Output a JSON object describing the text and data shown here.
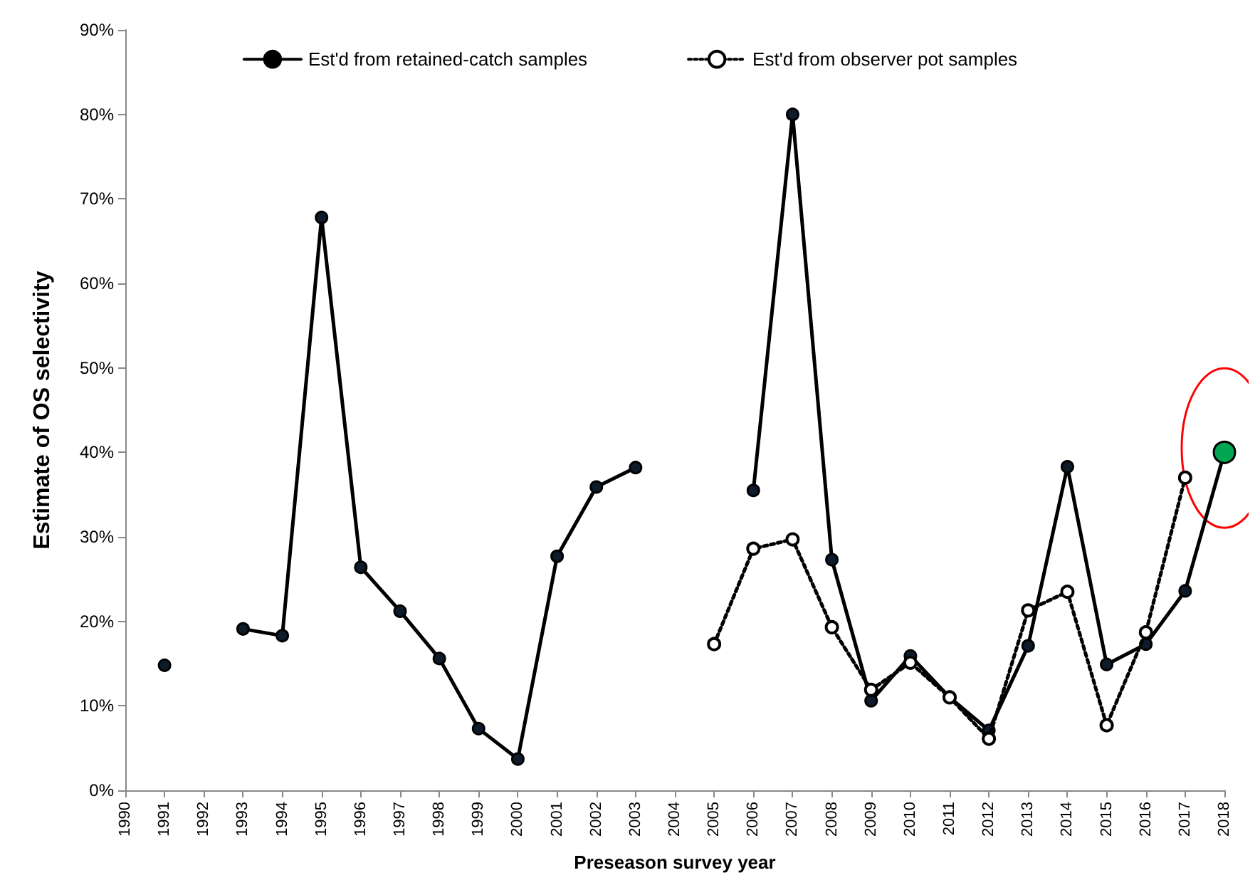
{
  "chart_data": {
    "type": "line",
    "xlabel": "Preseason survey year",
    "ylabel": "Estimate of OS selectivity",
    "categories": [
      "1990",
      "1991",
      "1992",
      "1993",
      "1994",
      "1995",
      "1996",
      "1997",
      "1998",
      "1999",
      "2000",
      "2001",
      "2002",
      "2003",
      "2004",
      "2005",
      "2006",
      "2007",
      "2008",
      "2009",
      "2010",
      "2011",
      "2012",
      "2013",
      "2014",
      "2015",
      "2016",
      "2017",
      "2018"
    ],
    "series": [
      {
        "name": "Est'd from retained-catch samples",
        "color": "#000000",
        "marker": "circle",
        "line_style": "solid",
        "values": [
          null,
          14.8,
          null,
          19.1,
          18.3,
          67.8,
          26.4,
          21.2,
          15.6,
          7.3,
          3.7,
          27.7,
          35.9,
          38.2,
          null,
          null,
          35.5,
          80,
          27.3,
          10.6,
          15.9,
          11,
          7.1,
          17.1,
          38.3,
          14.9,
          17.3,
          23.6,
          40
        ],
        "colors": [
          "#0d1b2a",
          "#0d1b2a",
          "#0d1b2a",
          "#0d1b2a",
          "#0d1b2a",
          "#0d1b2a",
          "#0d1b2a",
          "#0d1b2a",
          "#0d1b2a",
          "#0d1b2a",
          "#0d1b2a",
          "#0d1b2a",
          "#0d1b2a",
          "#0d1b2a",
          "#0d1b2a",
          "#0d1b2a",
          "#0d1b2a",
          "#0d1b2a",
          "#0d1b2a",
          "#0d1b2a",
          "#0d1b2a",
          "#0d1b2a",
          "#0d1b2a",
          "#0d1b2a",
          "#0d1b2a",
          "#0d1b2a",
          "#0d1b2a",
          "#0d1b2a",
          "#00a651"
        ]
      },
      {
        "name": "Est'd from observer pot samples",
        "color": "#000000",
        "marker": "open_circle",
        "line_style": "dotted",
        "values": [
          null,
          null,
          null,
          null,
          null,
          null,
          null,
          null,
          null,
          null,
          null,
          null,
          null,
          null,
          null,
          17.3,
          28.6,
          29.7,
          19.3,
          11.9,
          15.1,
          11,
          6.1,
          21.3,
          23.5,
          7.7,
          18.7,
          37,
          null
        ]
      }
    ],
    "ylim": [
      0,
      90
    ],
    "yticks": [
      {
        "value": 0,
        "label": "0%"
      },
      {
        "value": 10,
        "label": "10%"
      },
      {
        "value": 20,
        "label": "20%"
      },
      {
        "value": 30,
        "label": "30%"
      },
      {
        "value": 40,
        "label": "40%"
      },
      {
        "value": 50,
        "label": "50%"
      },
      {
        "value": 60,
        "label": "60%"
      },
      {
        "value": 70,
        "label": "70%"
      },
      {
        "value": 80,
        "label": "80%"
      },
      {
        "value": 90,
        "label": "90%"
      }
    ],
    "grid": false,
    "legend": "top"
  }
}
